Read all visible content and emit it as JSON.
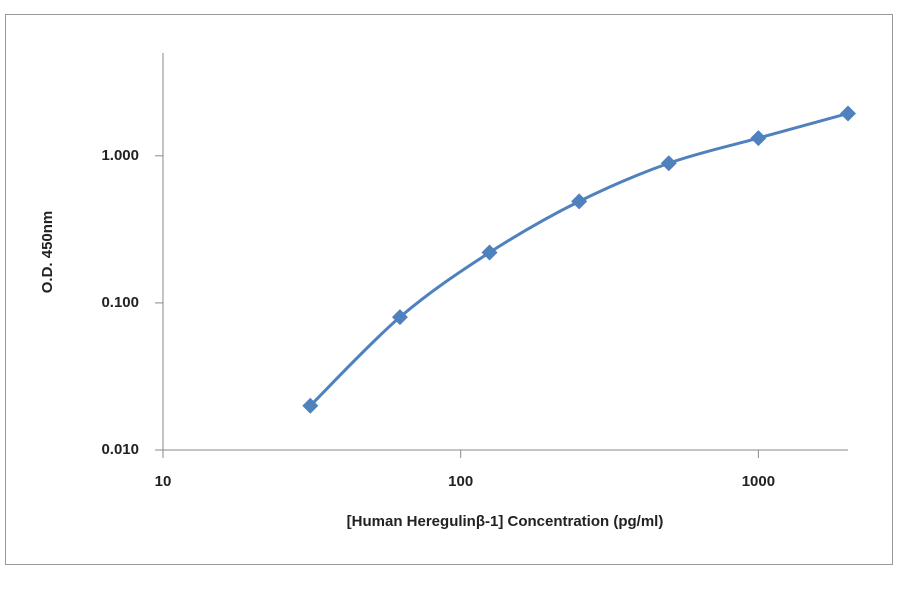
{
  "chart_data": {
    "type": "line",
    "x_label": "[Human Heregulinβ-1] Concentration  (pg/ml)",
    "y_label": "O.D. 450nm",
    "x": [
      31.25,
      62.5,
      125,
      250,
      500,
      1000,
      2000
    ],
    "series": [
      {
        "name": "O.D. 450nm",
        "color": "#4f81bd",
        "values": [
          0.02,
          0.08,
          0.22,
          0.49,
          0.89,
          1.32,
          1.94
        ]
      }
    ],
    "xlim": [
      10,
      2000
    ],
    "ylim": [
      0.01,
      5
    ],
    "xticks": [
      10,
      100,
      1000
    ],
    "yticks": [
      {
        "value": 0.01,
        "label": "0.010"
      },
      {
        "value": 0.1,
        "label": "0.100"
      },
      {
        "value": 1,
        "label": "1.000"
      }
    ],
    "xscale": "log",
    "yscale": "log",
    "grid": false
  }
}
